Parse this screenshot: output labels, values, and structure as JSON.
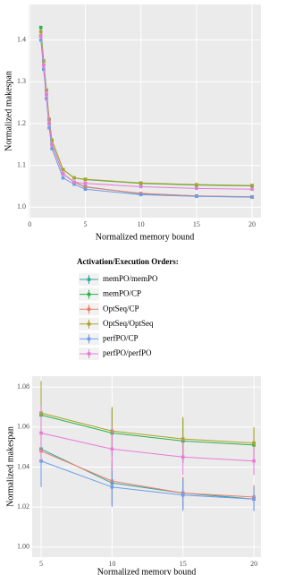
{
  "chart_data": [
    {
      "type": "line",
      "xlabel": "Normalized memory bound",
      "ylabel": "Normalized makespan",
      "xlim": [
        -0.1,
        20.8
      ],
      "ylim": [
        0.975,
        1.485
      ],
      "xticks": [
        0,
        5,
        10,
        15,
        20
      ],
      "yticks": [
        {
          "value": 1.0,
          "label": "1.0"
        },
        {
          "value": 1.1,
          "label": "1.1"
        },
        {
          "value": 1.2,
          "label": "1.2"
        },
        {
          "value": 1.3,
          "label": "1.3"
        },
        {
          "value": 1.4,
          "label": "1.4"
        }
      ],
      "grid": true,
      "legend_title": "Activation/Execution Orders:",
      "x": [
        1,
        1.25,
        1.5,
        1.75,
        2,
        3,
        4,
        5,
        10,
        15,
        20
      ],
      "series": [
        {
          "name": "memPO/memPO",
          "color": "#2aa89c",
          "values": [
            1.41,
            1.34,
            1.27,
            1.2,
            1.15,
            1.08,
            1.06,
            1.049,
            1.032,
            1.027,
            1.024
          ]
        },
        {
          "name": "memPO/CP",
          "color": "#27b34b",
          "values": [
            1.43,
            1.35,
            1.28,
            1.21,
            1.16,
            1.09,
            1.07,
            1.066,
            1.057,
            1.053,
            1.051
          ]
        },
        {
          "name": "OptSeq/CP",
          "color": "#f07b6b",
          "values": [
            1.41,
            1.34,
            1.27,
            1.2,
            1.15,
            1.08,
            1.06,
            1.048,
            1.033,
            1.027,
            1.025
          ]
        },
        {
          "name": "OptSeq/OptSeq",
          "color": "#a9a326",
          "values": [
            1.42,
            1.35,
            1.28,
            1.21,
            1.16,
            1.09,
            1.07,
            1.067,
            1.058,
            1.054,
            1.052
          ]
        },
        {
          "name": "perfPO/CP",
          "color": "#6c9ceb",
          "values": [
            1.4,
            1.33,
            1.26,
            1.19,
            1.14,
            1.07,
            1.055,
            1.043,
            1.03,
            1.026,
            1.024
          ]
        },
        {
          "name": "perfPO/perfPO",
          "color": "#e97ad9",
          "values": [
            1.41,
            1.34,
            1.27,
            1.2,
            1.15,
            1.08,
            1.06,
            1.057,
            1.049,
            1.045,
            1.043
          ]
        }
      ]
    },
    {
      "type": "line",
      "xlabel": "Normalized memory bound",
      "ylabel": "Normalized makespan",
      "xlim": [
        4.37,
        20.5
      ],
      "ylim": [
        0.995,
        1.0854
      ],
      "xticks": [
        5,
        10,
        15,
        20
      ],
      "yticks": [
        {
          "value": 1.0,
          "label": "1.00"
        },
        {
          "value": 1.02,
          "label": "1.02"
        },
        {
          "value": 1.04,
          "label": "1.04"
        },
        {
          "value": 1.06,
          "label": "1.06"
        },
        {
          "value": 1.08,
          "label": "1.08"
        }
      ],
      "grid": true,
      "x": [
        5,
        10,
        15,
        20
      ],
      "series": [
        {
          "color": "#2aa89c",
          "values": [
            1.049,
            1.032,
            1.027,
            1.024
          ],
          "errors": [
            0.014,
            0.011,
            0.008,
            0.006
          ]
        },
        {
          "color": "#27b34b",
          "values": [
            1.066,
            1.057,
            1.053,
            1.051
          ],
          "errors": [
            0.016,
            0.012,
            0.011,
            0.008
          ]
        },
        {
          "color": "#f07b6b",
          "values": [
            1.048,
            1.033,
            1.027,
            1.025
          ],
          "errors": [
            0.014,
            0.011,
            0.008,
            0.006
          ]
        },
        {
          "color": "#a9a326",
          "values": [
            1.067,
            1.058,
            1.054,
            1.052
          ],
          "errors": [
            0.016,
            0.012,
            0.011,
            0.008
          ]
        },
        {
          "color": "#6c9ceb",
          "values": [
            1.043,
            1.03,
            1.026,
            1.024
          ],
          "errors": [
            0.013,
            0.01,
            0.008,
            0.006
          ]
        },
        {
          "color": "#e97ad9",
          "values": [
            1.057,
            1.049,
            1.045,
            1.043
          ],
          "errors": [
            0.014,
            0.011,
            0.009,
            0.007
          ]
        }
      ]
    }
  ]
}
